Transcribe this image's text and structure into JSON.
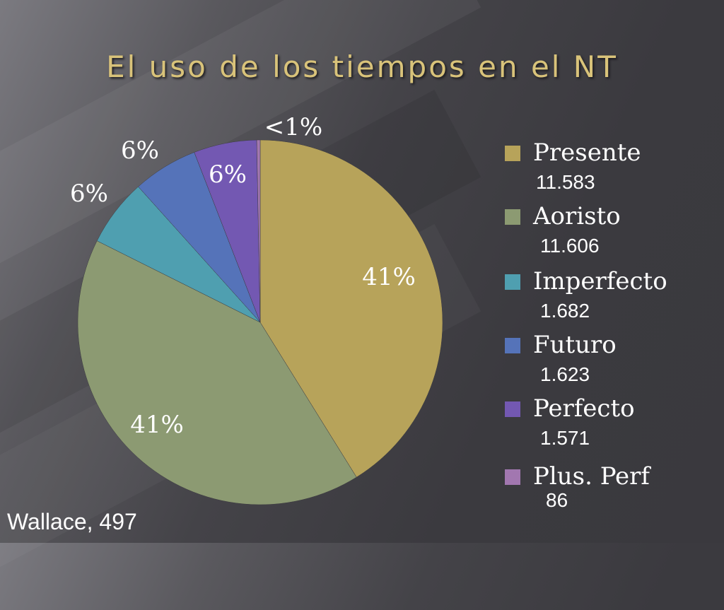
{
  "slide": {
    "title": "El uso de los tiempos en el NT",
    "footer": "Wallace, 497"
  },
  "colors": {
    "presente": "#b7a35a",
    "aoristo": "#8c9a72",
    "imperfecto": "#4f9fb0",
    "futuro": "#5573b9",
    "perfecto": "#7358b2",
    "plus_perf": "#a277b0"
  },
  "chart_data": {
    "type": "pie",
    "title": "El uso de los tiempos en el NT",
    "legend_position": "right",
    "slices": [
      {
        "name": "Presente",
        "value": 11583,
        "value_text": "11.583",
        "label": "41%",
        "color": "#b7a35a"
      },
      {
        "name": "Aoristo",
        "value": 11606,
        "value_text": "11.606",
        "label": "41%",
        "color": "#8c9a72"
      },
      {
        "name": "Imperfecto",
        "value": 1682,
        "value_text": "1.682",
        "label": "6%",
        "color": "#4f9fb0"
      },
      {
        "name": "Futuro",
        "value": 1623,
        "value_text": "1.623",
        "label": "6%",
        "color": "#5573b9"
      },
      {
        "name": "Perfecto",
        "value": 1571,
        "value_text": "1.571",
        "label": "6%",
        "color": "#7358b2"
      },
      {
        "name": "Plus. Perf",
        "value": 86,
        "value_text": "86",
        "label": "<1%",
        "color": "#a277b0"
      }
    ]
  }
}
